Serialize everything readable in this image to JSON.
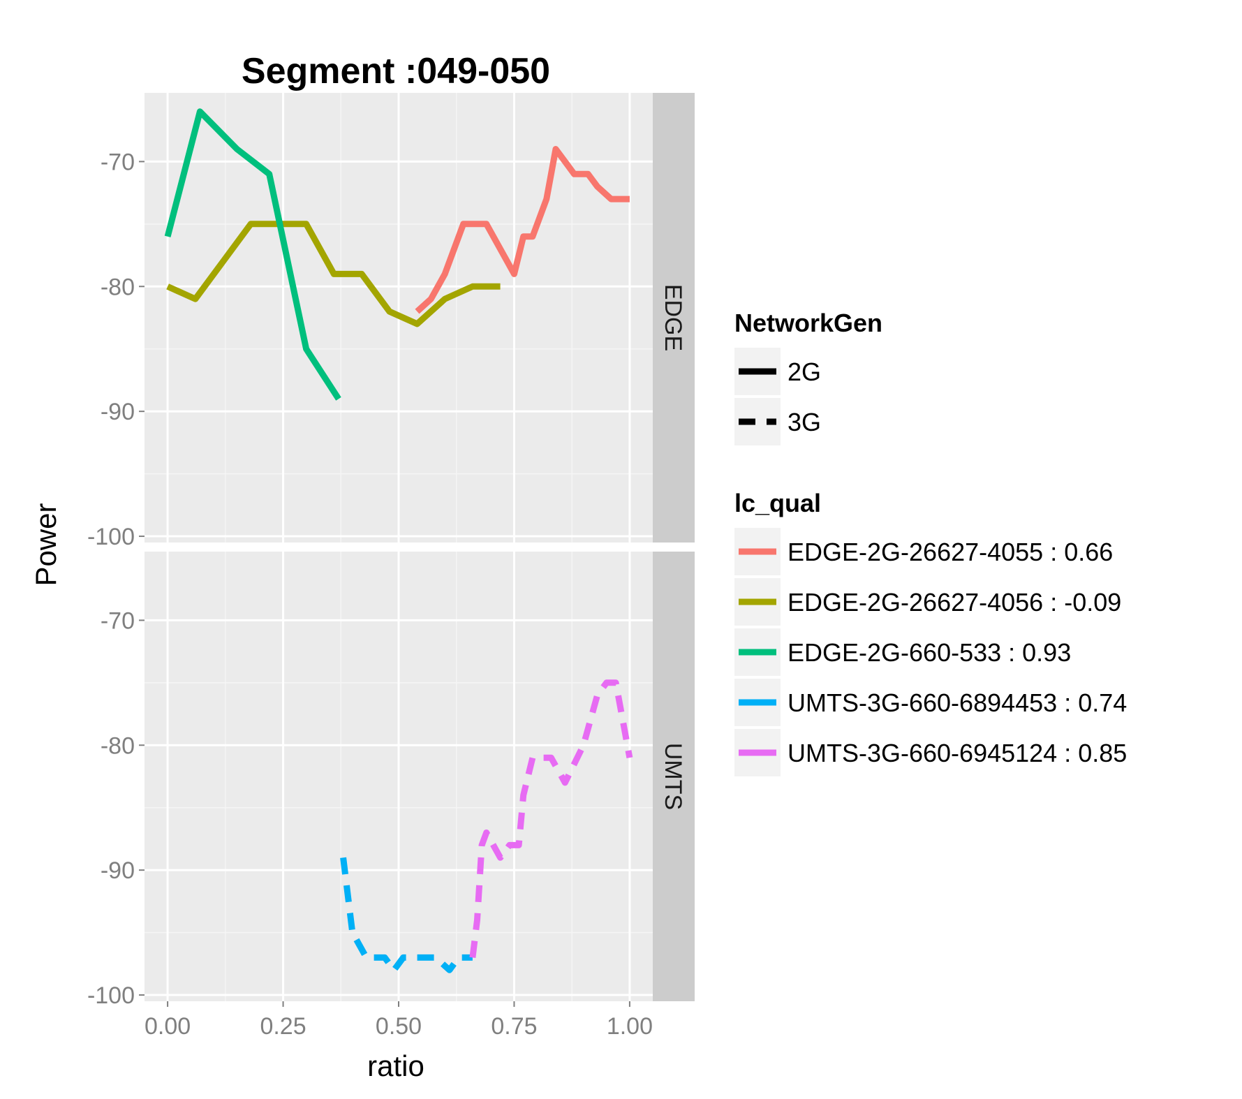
{
  "chart_data": {
    "type": "line",
    "title": "Segment :049-050",
    "xlabel": "ratio",
    "ylabel": "Power",
    "xlim": [
      -0.05,
      1.05
    ],
    "ylim": [
      -100.5,
      -64.5
    ],
    "x_ticks": [
      0.0,
      0.25,
      0.5,
      0.75,
      1.0
    ],
    "x_tick_labels": [
      "0.00",
      "0.25",
      "0.50",
      "0.75",
      "1.00"
    ],
    "y_ticks": [
      -100,
      -90,
      -80,
      -70
    ],
    "y_tick_labels": [
      "-100",
      "-90",
      "-80",
      "-70"
    ],
    "grid": true,
    "background": "#ebebeb",
    "legend_position": "right",
    "facets": [
      "EDGE",
      "UMTS"
    ],
    "linetype_legend": {
      "title": "NetworkGen",
      "entries": [
        {
          "label": "2G",
          "dash": "solid"
        },
        {
          "label": "3G",
          "dash": "dashed"
        }
      ]
    },
    "color_legend": {
      "title": "lc_qual",
      "entries": [
        {
          "label": "EDGE-2G-26627-4055 : 0.66",
          "color": "#f8766d"
        },
        {
          "label": "EDGE-2G-26627-4056 : -0.09",
          "color": "#a3a500"
        },
        {
          "label": "EDGE-2G-660-533 : 0.93",
          "color": "#00bf7d"
        },
        {
          "label": "UMTS-3G-660-6894453 : 0.74",
          "color": "#00b0f6"
        },
        {
          "label": "UMTS-3G-660-6945124 : 0.85",
          "color": "#e76bf3"
        }
      ]
    },
    "series": [
      {
        "name": "EDGE-2G-26627-4055 : 0.66",
        "facet": "EDGE",
        "color": "#f8766d",
        "dash": "solid",
        "x": [
          0.54,
          0.57,
          0.6,
          0.64,
          0.69,
          0.75,
          0.77,
          0.79,
          0.82,
          0.84,
          0.86,
          0.88,
          0.91,
          0.93,
          0.96,
          0.98,
          1.0
        ],
        "y": [
          -82,
          -81,
          -79,
          -75,
          -75,
          -79,
          -76,
          -76,
          -73,
          -69,
          -70,
          -71,
          -71,
          -72,
          -73,
          -73,
          -73
        ]
      },
      {
        "name": "EDGE-2G-26627-4056 : -0.09",
        "facet": "EDGE",
        "color": "#a3a500",
        "dash": "solid",
        "x": [
          0.0,
          0.06,
          0.12,
          0.18,
          0.24,
          0.3,
          0.36,
          0.42,
          0.48,
          0.54,
          0.6,
          0.66,
          0.72
        ],
        "y": [
          -80,
          -81,
          -78,
          -75,
          -75,
          -75,
          -79,
          -79,
          -82,
          -83,
          -81,
          -80,
          -80
        ]
      },
      {
        "name": "EDGE-2G-660-533 : 0.93",
        "facet": "EDGE",
        "color": "#00bf7d",
        "dash": "solid",
        "x": [
          0.0,
          0.07,
          0.15,
          0.22,
          0.3,
          0.37
        ],
        "y": [
          -76,
          -66,
          -69,
          -71,
          -85,
          -89
        ]
      },
      {
        "name": "UMTS-3G-660-6894453 : 0.74",
        "facet": "UMTS",
        "color": "#00b0f6",
        "dash": "dashed",
        "x": [
          0.38,
          0.4,
          0.43,
          0.47,
          0.49,
          0.51,
          0.54,
          0.58,
          0.61,
          0.63,
          0.66
        ],
        "y": [
          -89,
          -95,
          -97,
          -97,
          -98,
          -97,
          -97,
          -97,
          -98,
          -97,
          -97
        ]
      },
      {
        "name": "UMTS-3G-660-6945124 : 0.85",
        "facet": "UMTS",
        "color": "#e76bf3",
        "dash": "dashed",
        "x": [
          0.66,
          0.67,
          0.68,
          0.69,
          0.72,
          0.74,
          0.76,
          0.77,
          0.79,
          0.81,
          0.83,
          0.86,
          0.9,
          0.93,
          0.95,
          0.97,
          1.0
        ],
        "y": [
          -97,
          -94,
          -88,
          -87,
          -89,
          -88,
          -88,
          -84,
          -81,
          -81,
          -81,
          -83,
          -80,
          -76,
          -75,
          -75,
          -81
        ]
      }
    ]
  }
}
